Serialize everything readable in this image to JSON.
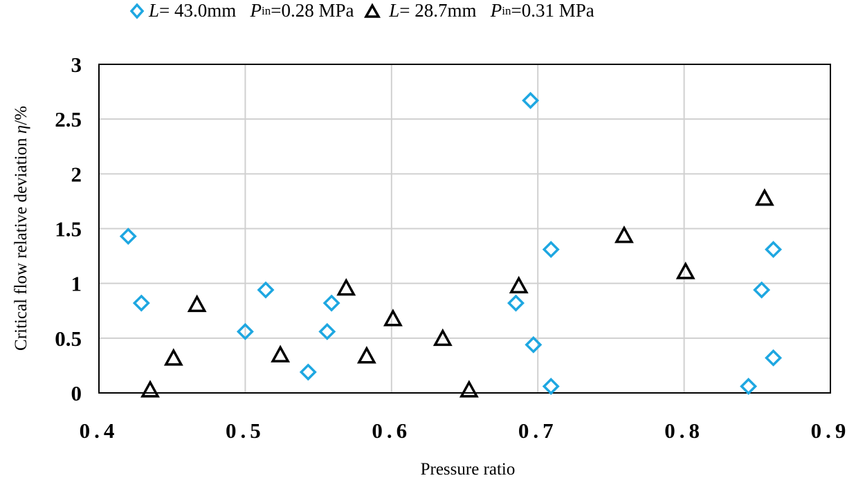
{
  "chart_data": {
    "type": "scatter",
    "xlabel": "Pressure ratio",
    "ylabel_parts": {
      "text": "Critical flow  relative deviation ",
      "symbol": "η",
      "unit": "/%"
    },
    "xlim": [
      0.4,
      0.9
    ],
    "ylim": [
      0,
      3
    ],
    "x_ticks": [
      "0.4",
      "0.5",
      "0.6",
      "0.7",
      "0.8",
      "0.9"
    ],
    "y_ticks": [
      "0",
      "0.5",
      "1",
      "1.5",
      "2",
      "2.5",
      "3"
    ],
    "grid": true,
    "legend_position": "top",
    "series": [
      {
        "name_parts": {
          "var": "L",
          "eq": "= 43.0mm",
          "pvar": "P",
          "psub": "in",
          "pval": "=0.28 MPa"
        },
        "marker": "diamond",
        "color": "#1ea7e1",
        "x": [
          0.42,
          0.429,
          0.514,
          0.5,
          0.543,
          0.559,
          0.556,
          0.695,
          0.709,
          0.685,
          0.697,
          0.709,
          0.861,
          0.853,
          0.861,
          0.844
        ],
        "y": [
          1.43,
          0.82,
          0.94,
          0.56,
          0.19,
          0.82,
          0.56,
          2.67,
          1.31,
          0.82,
          0.44,
          0.06,
          1.31,
          0.94,
          0.32,
          0.06
        ]
      },
      {
        "name_parts": {
          "var": "L",
          "eq": "= 28.7mm",
          "pvar": "P",
          "psub": "in",
          "pval": "=0.31 MPa"
        },
        "marker": "triangle",
        "color": "#000000",
        "x": [
          0.435,
          0.451,
          0.467,
          0.524,
          0.569,
          0.583,
          0.601,
          0.635,
          0.653,
          0.687,
          0.759,
          0.801,
          0.855
        ],
        "y": [
          0.02,
          0.31,
          0.8,
          0.34,
          0.95,
          0.33,
          0.67,
          0.49,
          0.02,
          0.97,
          1.43,
          1.1,
          1.77
        ]
      }
    ]
  }
}
